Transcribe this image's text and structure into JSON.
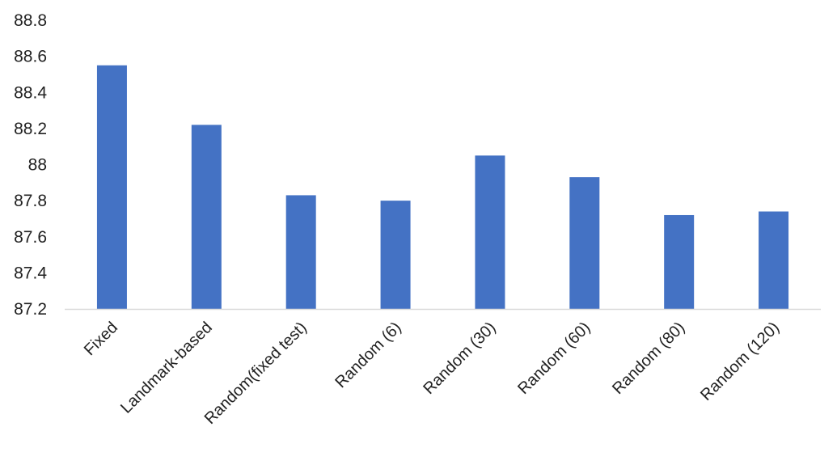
{
  "chart_data": {
    "type": "bar",
    "categories": [
      "Fixed",
      "Landmark-based",
      "Random(fixed test)",
      "Random (6)",
      "Random (30)",
      "Random (60)",
      "Random (80)",
      "Random (120)"
    ],
    "values": [
      88.55,
      88.22,
      87.83,
      87.8,
      88.05,
      87.93,
      87.72,
      87.74
    ],
    "yticks": [
      "87.2",
      "87.4",
      "87.6",
      "87.8",
      "88",
      "88.2",
      "88.4",
      "88.6",
      "88.8"
    ],
    "ylim": [
      87.2,
      88.8
    ],
    "title": "",
    "xlabel": "",
    "ylabel": "",
    "grid": false,
    "legend": "none",
    "bar_color": "#4472C4",
    "axis_color": "#D9D9D9"
  }
}
